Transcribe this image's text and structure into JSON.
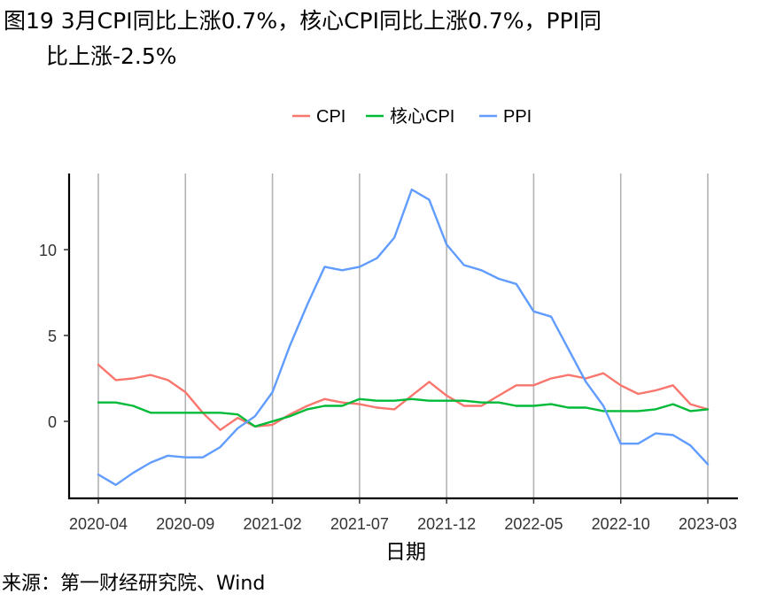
{
  "title_line1": "图19 3月CPI同比上涨0.7%，核心CPI同比上涨0.7%，PPI同",
  "title_line2": "比上涨-2.5%",
  "source": "来源：第一财经研究院、Wind",
  "chart_data": {
    "type": "line",
    "xlabel": "日期",
    "ylabel": "",
    "x_tick_labels": [
      "2020-04",
      "2020-09",
      "2021-02",
      "2021-07",
      "2021-12",
      "2022-05",
      "2022-10",
      "2023-03"
    ],
    "x_tick_index": [
      0,
      5,
      10,
      15,
      20,
      25,
      30,
      35
    ],
    "y_ticks": [
      0,
      5,
      10
    ],
    "ylim": [
      -4.5,
      14.5
    ],
    "grid": "vertical",
    "legend_position": "top",
    "x": [
      "2020-04",
      "2020-05",
      "2020-06",
      "2020-07",
      "2020-08",
      "2020-09",
      "2020-10",
      "2020-11",
      "2020-12",
      "2021-01",
      "2021-02",
      "2021-03",
      "2021-04",
      "2021-05",
      "2021-06",
      "2021-07",
      "2021-08",
      "2021-09",
      "2021-10",
      "2021-11",
      "2021-12",
      "2022-01",
      "2022-02",
      "2022-03",
      "2022-04",
      "2022-05",
      "2022-06",
      "2022-07",
      "2022-08",
      "2022-09",
      "2022-10",
      "2022-11",
      "2022-12",
      "2023-01",
      "2023-02",
      "2023-03"
    ],
    "series": [
      {
        "name": "CPI",
        "color": "#f8766d",
        "values": [
          3.3,
          2.4,
          2.5,
          2.7,
          2.4,
          1.7,
          0.5,
          -0.5,
          0.2,
          -0.3,
          -0.2,
          0.4,
          0.9,
          1.3,
          1.1,
          1.0,
          0.8,
          0.7,
          1.5,
          2.3,
          1.5,
          0.9,
          0.9,
          1.5,
          2.1,
          2.1,
          2.5,
          2.7,
          2.5,
          2.8,
          2.1,
          1.6,
          1.8,
          2.1,
          1.0,
          0.7
        ]
      },
      {
        "name": "核心CPI",
        "color": "#00ba38",
        "values": [
          1.1,
          1.1,
          0.9,
          0.5,
          0.5,
          0.5,
          0.5,
          0.5,
          0.4,
          -0.3,
          0.0,
          0.3,
          0.7,
          0.9,
          0.9,
          1.3,
          1.2,
          1.2,
          1.3,
          1.2,
          1.2,
          1.2,
          1.1,
          1.1,
          0.9,
          0.9,
          1.0,
          0.8,
          0.8,
          0.6,
          0.6,
          0.6,
          0.7,
          1.0,
          0.6,
          0.7
        ]
      },
      {
        "name": "PPI",
        "color": "#619cff",
        "values": [
          -3.1,
          -3.7,
          -3.0,
          -2.4,
          -2.0,
          -2.1,
          -2.1,
          -1.5,
          -0.4,
          0.3,
          1.7,
          4.4,
          6.8,
          9.0,
          8.8,
          9.0,
          9.5,
          10.7,
          13.5,
          12.9,
          10.3,
          9.1,
          8.8,
          8.3,
          8.0,
          6.4,
          6.1,
          4.2,
          2.3,
          0.9,
          -1.3,
          -1.3,
          -0.7,
          -0.8,
          -1.4,
          -2.5
        ]
      }
    ]
  }
}
